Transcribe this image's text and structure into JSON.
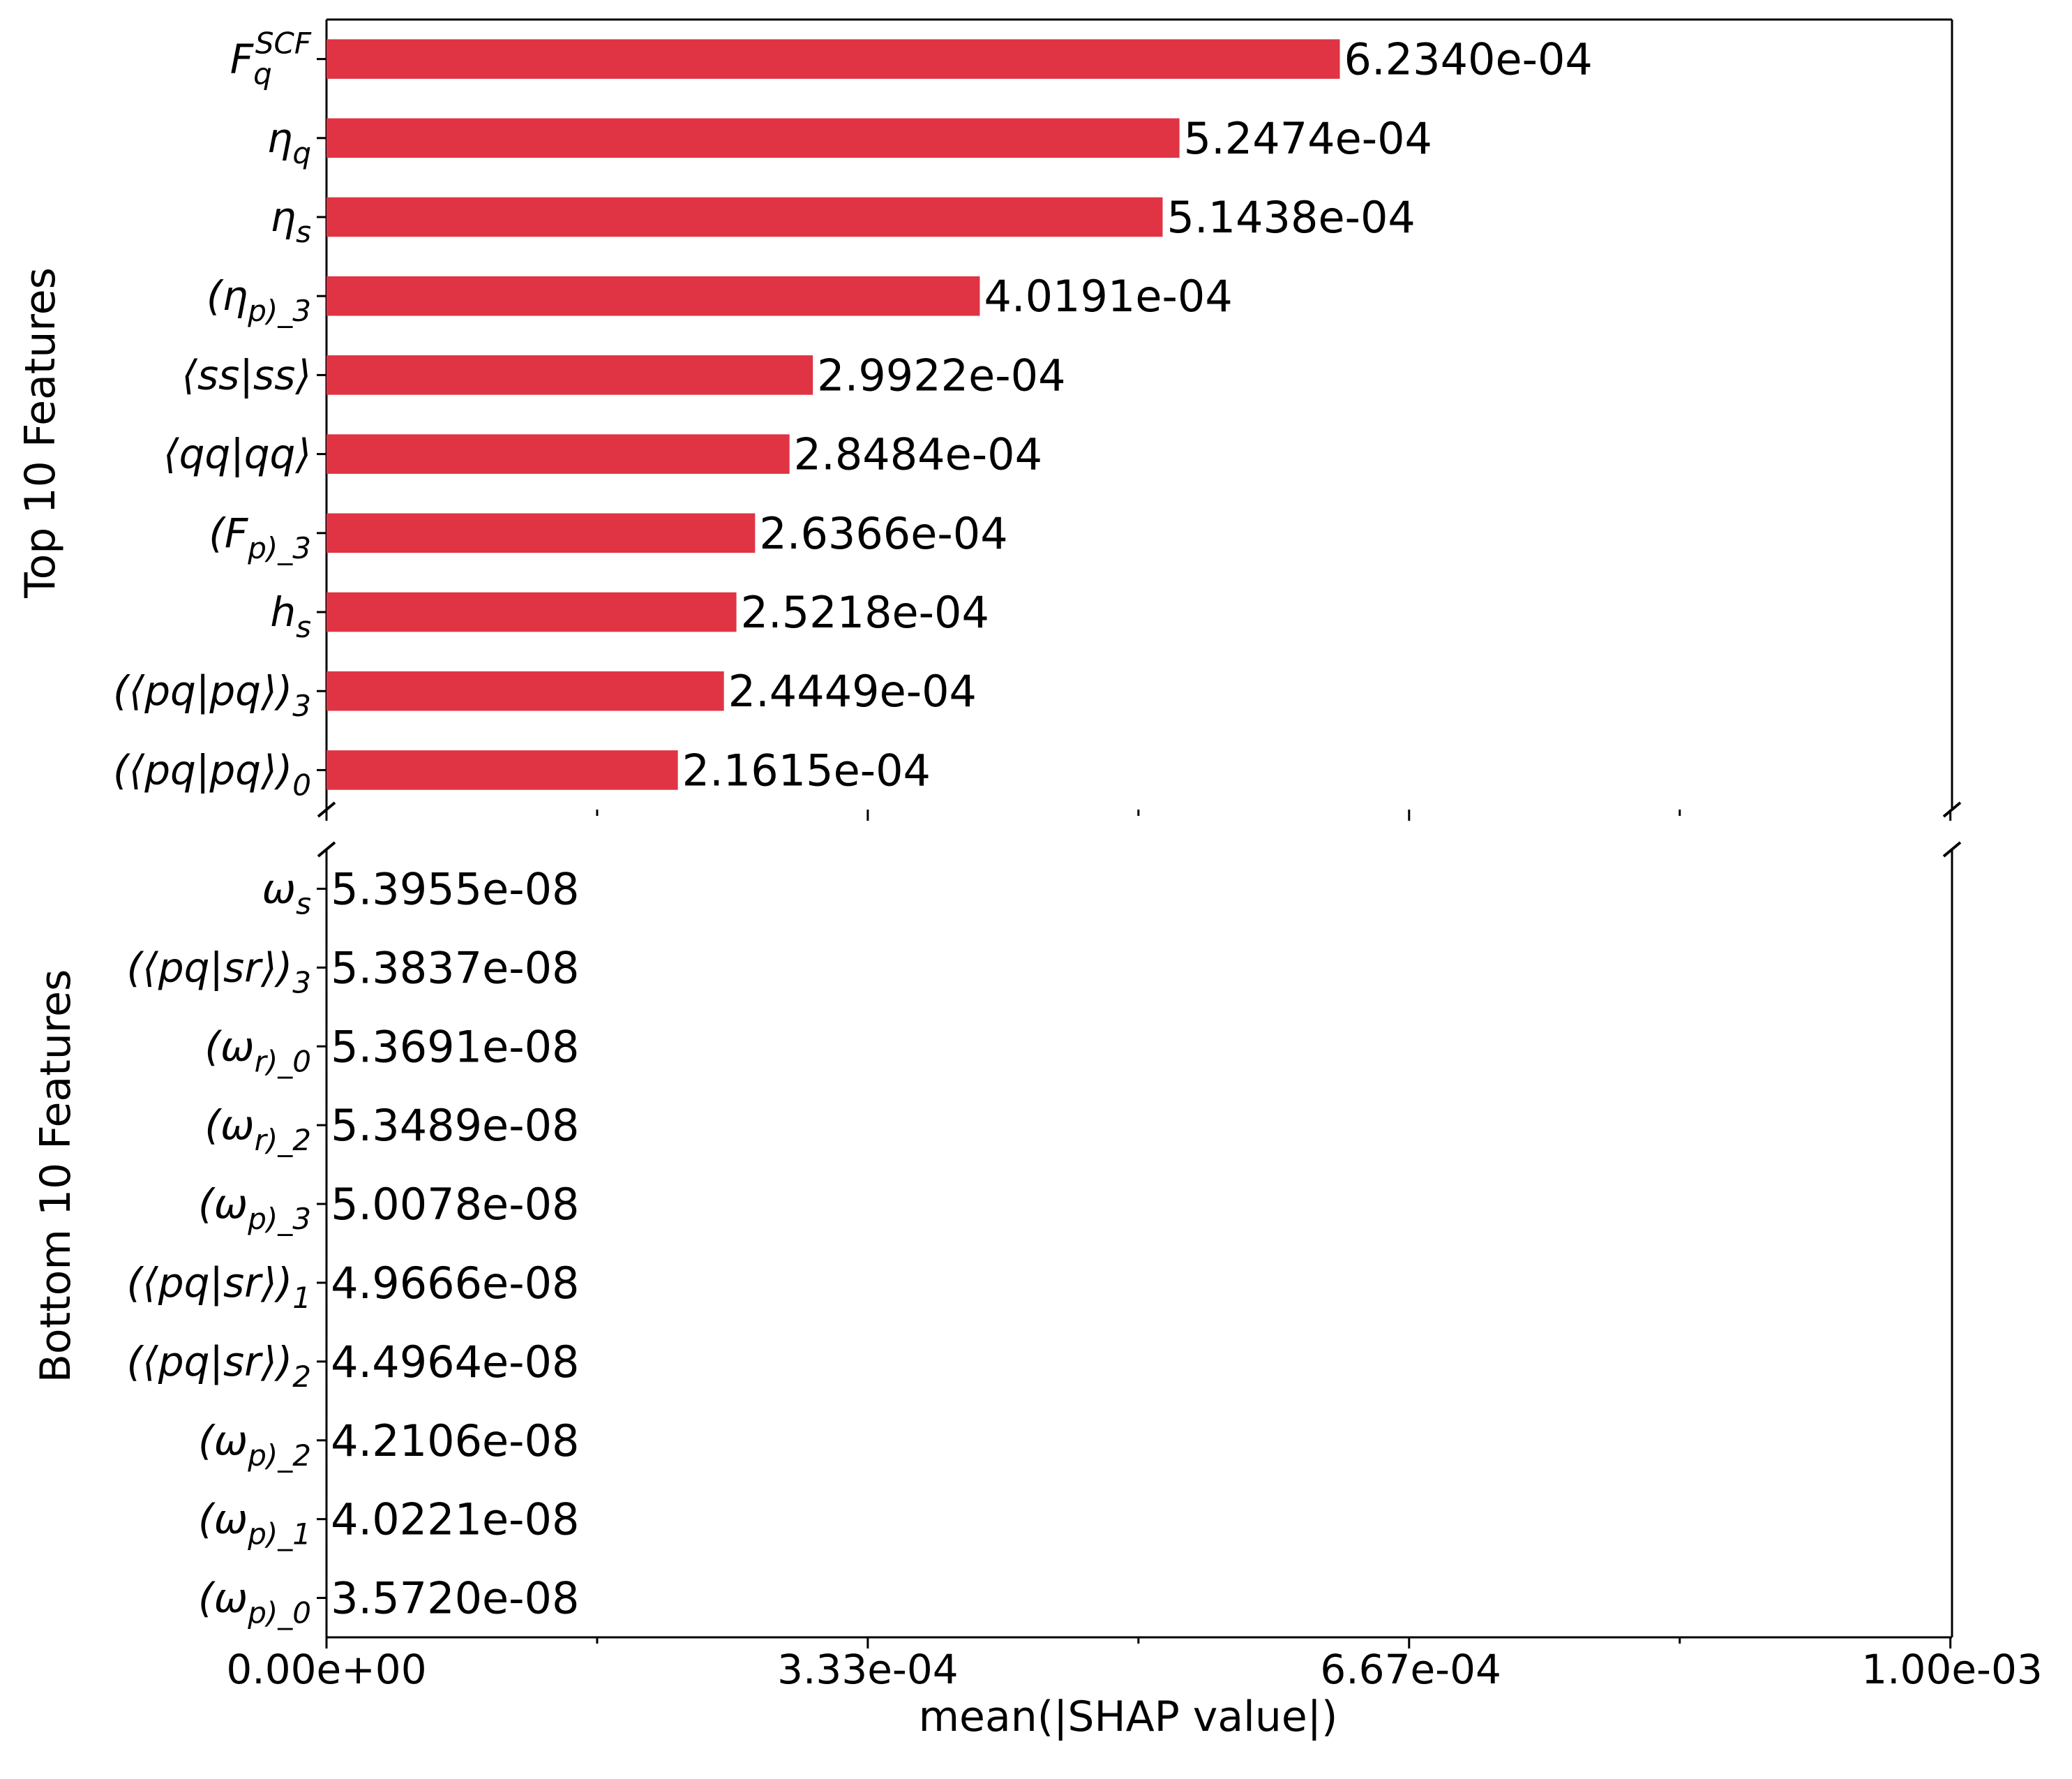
{
  "colors": {
    "bar": "#e03444",
    "axis": "#000000"
  },
  "chart_data": [
    {
      "type": "bar",
      "orientation": "horizontal",
      "ylabel": "Top 10 Features",
      "xlim": [
        0,
        0.001
      ],
      "categories": [
        "F_q^{SCF}",
        "η_q",
        "η_s",
        "(η_p)_3",
        "⟨ss|ss⟩",
        "⟨qq|qq⟩",
        "(F_p)_3",
        "h_s",
        "(⟨pq|pq⟩)_3",
        "(⟨pq|pq⟩)_0"
      ],
      "values": [
        0.0006234,
        0.00052474,
        0.00051438,
        0.00040191,
        0.00029922,
        0.00028484,
        0.00026366,
        0.00025218,
        0.00024449,
        0.00021615
      ],
      "value_labels": [
        "6.2340e-04",
        "5.2474e-04",
        "5.1438e-04",
        "4.0191e-04",
        "2.9922e-04",
        "2.8484e-04",
        "2.6366e-04",
        "2.5218e-04",
        "2.4449e-04",
        "2.1615e-04"
      ]
    },
    {
      "type": "bar",
      "orientation": "horizontal",
      "ylabel": "Bottom 10 Features",
      "xlabel": "mean(|SHAP value|)",
      "xlim": [
        0,
        0.001
      ],
      "xticks": [
        0,
        0.000333,
        0.000667,
        0.001
      ],
      "xtick_labels": [
        "0.00e+00",
        "3.33e-04",
        "6.67e-04",
        "1.00e-03"
      ],
      "categories": [
        "ω_s",
        "(⟨pq|sr⟩)_3",
        "(ω_r)_0",
        "(ω_r)_2",
        "(ω_p)_3",
        "(⟨pq|sr⟩)_1",
        "(⟨pq|sr⟩)_2",
        "(ω_p)_2",
        "(ω_p)_1",
        "(ω_p)_0"
      ],
      "values": [
        5.3955e-08,
        5.3837e-08,
        5.3691e-08,
        5.3489e-08,
        5.0078e-08,
        4.9666e-08,
        4.4964e-08,
        4.2106e-08,
        4.0221e-08,
        3.572e-08
      ],
      "value_labels": [
        "5.3955e-08",
        "5.3837e-08",
        "5.3691e-08",
        "5.3489e-08",
        "5.0078e-08",
        "4.9666e-08",
        "4.4964e-08",
        "4.2106e-08",
        "4.0221e-08",
        "3.5720e-08"
      ]
    }
  ]
}
